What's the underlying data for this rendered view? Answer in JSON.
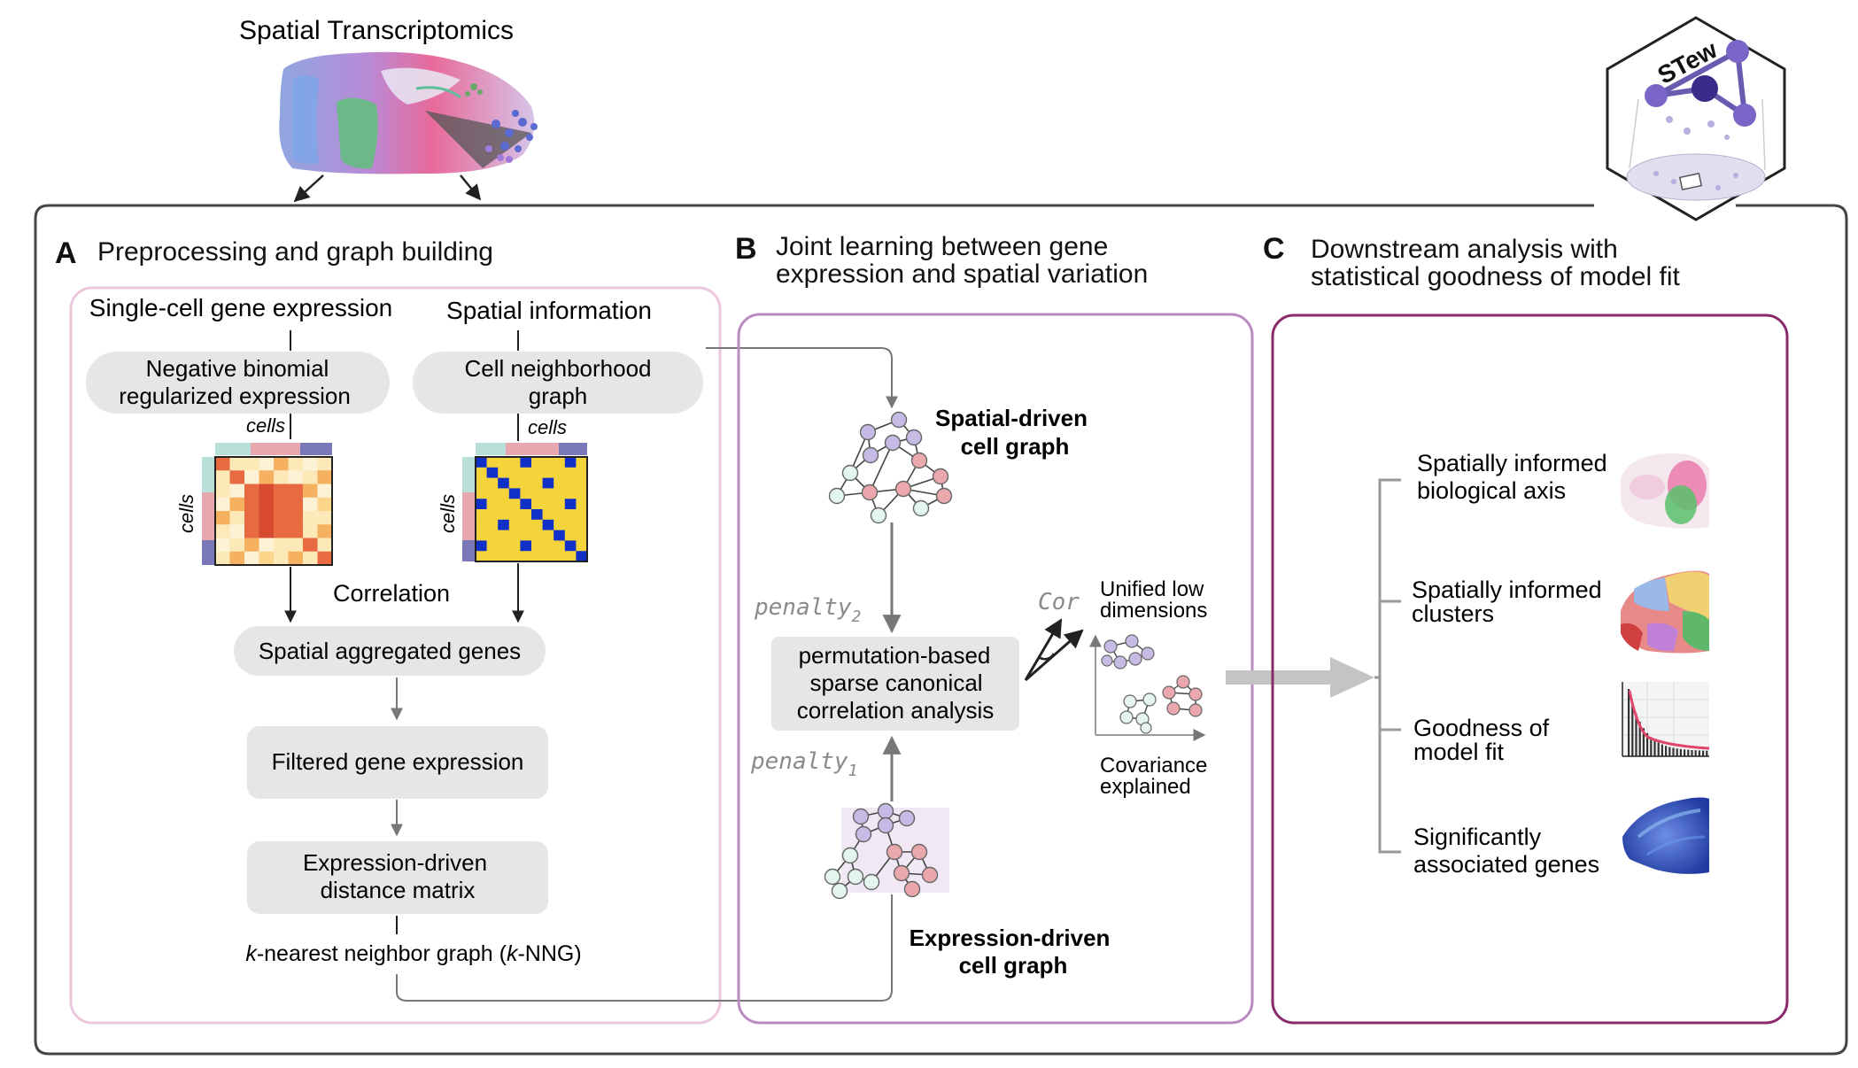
{
  "top": {
    "title": "Spatial Transcriptomics"
  },
  "logo": {
    "text": "STew"
  },
  "panelA": {
    "letter": "A",
    "title": "Preprocessing and graph building",
    "col1_title": "Single-cell gene expression",
    "col2_title": "Spatial information",
    "nb_line1": "Negative binomial",
    "nb_line2": "regularized expression",
    "cng_line1": "Cell neighborhood",
    "cng_line2": "graph",
    "cells_label": "cells",
    "correlation": "Correlation",
    "spatial_agg": "Spatial aggregated genes",
    "filtered": "Filtered gene expression",
    "expr_line1": "Expression-driven",
    "expr_line2": "distance matrix",
    "knn_k1": "k",
    "knn_mid": "-nearest neighbor graph (",
    "knn_k2": "k",
    "knn_end": "-NNG)"
  },
  "panelB": {
    "letter": "B",
    "title_line1": "Joint learning between gene",
    "title_line2": "expression and spatial variation",
    "spatial_graph_line1": "Spatial-driven",
    "spatial_graph_line2": "cell graph",
    "expr_graph_line1": "Expression-driven",
    "expr_graph_line2": "cell graph",
    "penalty2_base": "penalty",
    "penalty2_sub": "2",
    "penalty1_base": "penalty",
    "penalty1_sub": "1",
    "pscca_line1": "permutation-based",
    "pscca_line2": "sparse canonical",
    "pscca_line3": "correlation analysis",
    "cor": "Cor",
    "unified_line1": "Unified low",
    "unified_line2": "dimensions",
    "cov_line1": "Covariance",
    "cov_line2": "explained"
  },
  "panelC": {
    "letter": "C",
    "title_line1": "Downstream analysis with",
    "title_line2": "statistical goodness of model fit",
    "items": [
      {
        "line1": "Spatially informed",
        "line2": "biological axis"
      },
      {
        "line1": "Spatially informed",
        "line2": "clusters"
      },
      {
        "line1": "Goodness of",
        "line2": "model fit"
      },
      {
        "line1": "Significantly",
        "line2": "associated genes"
      }
    ]
  },
  "colors": {
    "panelA_border": "#ecc6dc",
    "panelB_border": "#b98cc0",
    "panelC_border": "#8a2a6a",
    "pill_fill": "#e6e6e6",
    "node_purple": "#b8a8d8",
    "node_pink": "#eaa8ad",
    "node_mint": "#d8efe6",
    "heat_yellow": "#f5d33a",
    "heat_blue": "#1030c8"
  }
}
